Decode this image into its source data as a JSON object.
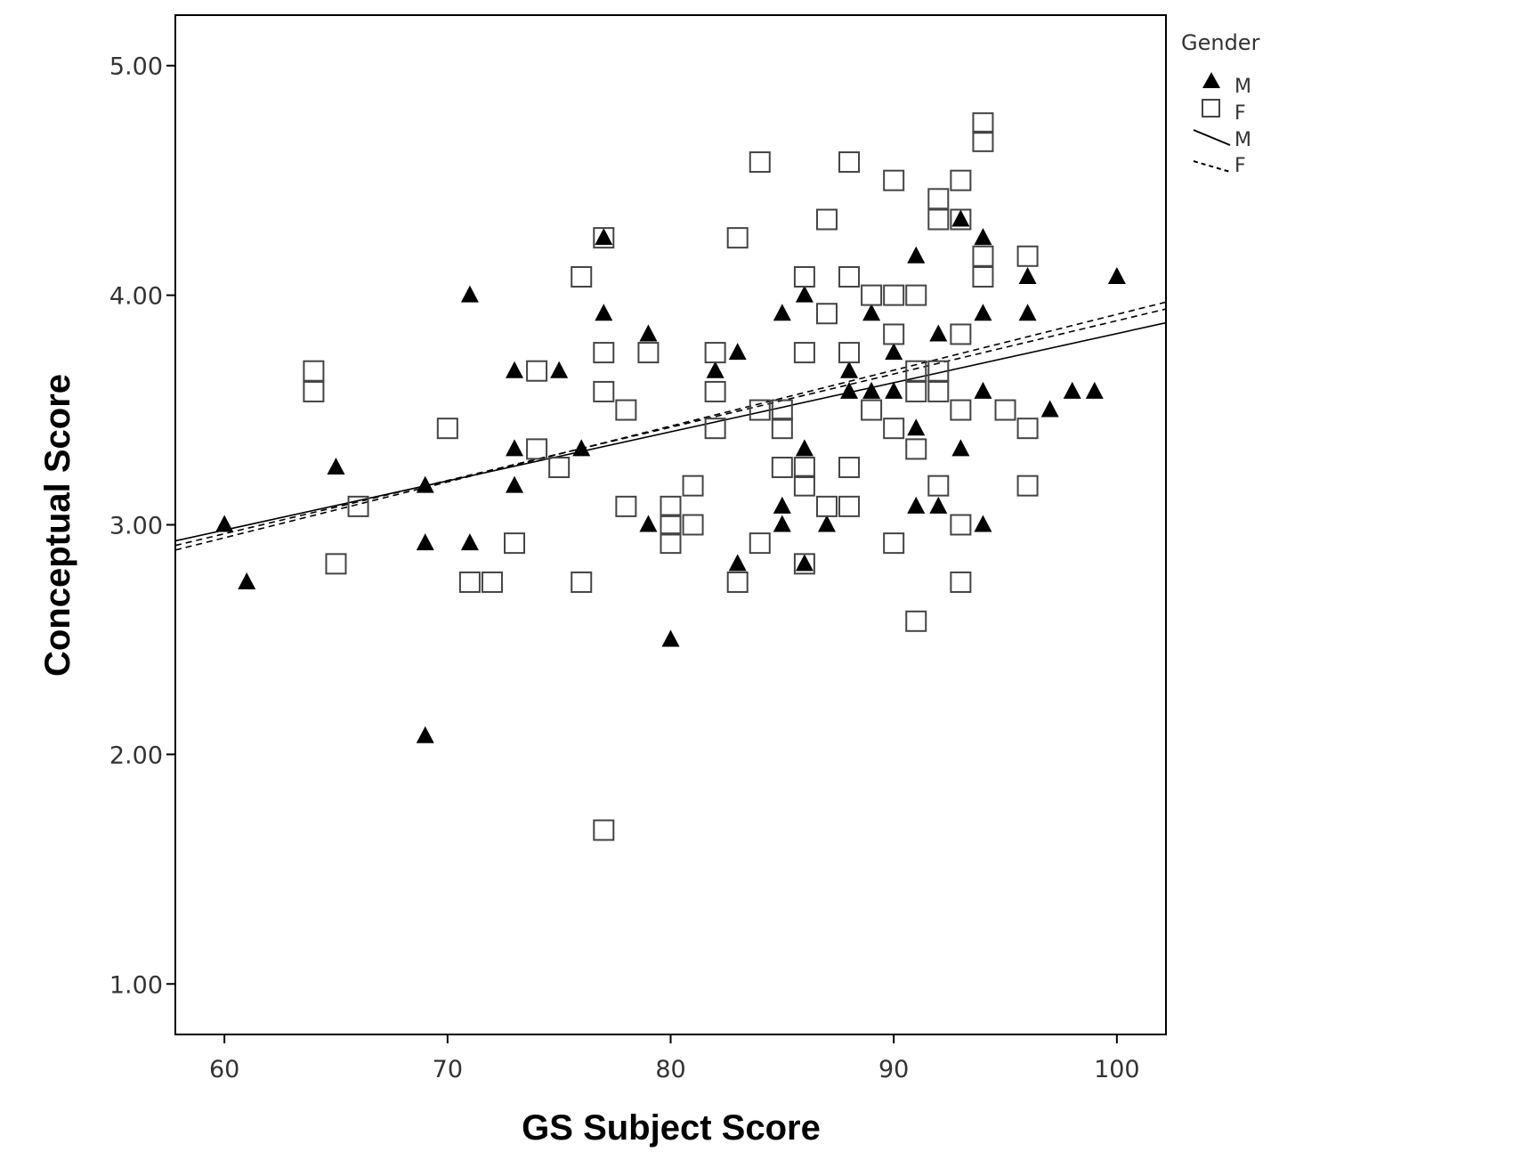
{
  "chart_data": {
    "type": "scatter",
    "title": "",
    "xlabel": "GS Subject Score",
    "ylabel": "Conceptual Score",
    "xlim": [
      57.8,
      102.2
    ],
    "ylim": [
      0.78,
      5.22
    ],
    "x_ticks": [
      60,
      70,
      80,
      90,
      100
    ],
    "x_tick_labels": [
      "60",
      "70",
      "80",
      "90",
      "100"
    ],
    "y_ticks": [
      1,
      2,
      3,
      4,
      5
    ],
    "y_tick_labels": [
      "1.00",
      "2.00",
      "3.00",
      "4.00",
      "5.00"
    ],
    "grid": false,
    "legend": {
      "title": "Gender",
      "position": "top-right, outside plot",
      "entries": [
        {
          "label": "M",
          "symbol": "filled-triangle"
        },
        {
          "label": "F",
          "symbol": "open-square"
        },
        {
          "label": "M",
          "symbol": "solid-line"
        },
        {
          "label": "F",
          "symbol": "dashed-line"
        }
      ]
    },
    "series": [
      {
        "name": "M",
        "marker": "filled-triangle",
        "color": "#000000",
        "points": [
          [
            60,
            3.0
          ],
          [
            61,
            2.75
          ],
          [
            65,
            3.25
          ],
          [
            69,
            3.17
          ],
          [
            69,
            2.92
          ],
          [
            69,
            2.08
          ],
          [
            71,
            4.0
          ],
          [
            71,
            2.92
          ],
          [
            73,
            3.67
          ],
          [
            73,
            3.33
          ],
          [
            73,
            3.17
          ],
          [
            75,
            3.67
          ],
          [
            76,
            3.33
          ],
          [
            77,
            4.25
          ],
          [
            77,
            3.92
          ],
          [
            79,
            3.83
          ],
          [
            79,
            3.0
          ],
          [
            80,
            2.5
          ],
          [
            82,
            3.67
          ],
          [
            83,
            3.75
          ],
          [
            83,
            2.83
          ],
          [
            85,
            3.92
          ],
          [
            85,
            3.08
          ],
          [
            85,
            3.0
          ],
          [
            86,
            4.0
          ],
          [
            86,
            3.33
          ],
          [
            86,
            2.83
          ],
          [
            87,
            3.0
          ],
          [
            88,
            3.67
          ],
          [
            88,
            3.58
          ],
          [
            89,
            3.92
          ],
          [
            89,
            3.58
          ],
          [
            90,
            3.75
          ],
          [
            90,
            3.58
          ],
          [
            91,
            4.17
          ],
          [
            91,
            3.42
          ],
          [
            91,
            3.08
          ],
          [
            92,
            3.83
          ],
          [
            92,
            3.08
          ],
          [
            93,
            4.33
          ],
          [
            93,
            3.33
          ],
          [
            94,
            4.25
          ],
          [
            94,
            3.92
          ],
          [
            94,
            3.58
          ],
          [
            94,
            3.0
          ],
          [
            96,
            4.08
          ],
          [
            96,
            3.92
          ],
          [
            97,
            3.5
          ],
          [
            98,
            3.58
          ],
          [
            99,
            3.58
          ],
          [
            100,
            4.08
          ]
        ]
      },
      {
        "name": "F",
        "marker": "open-square",
        "color": "#444444",
        "points": [
          [
            64,
            3.67
          ],
          [
            64,
            3.58
          ],
          [
            65,
            2.83
          ],
          [
            66,
            3.08
          ],
          [
            70,
            3.42
          ],
          [
            71,
            2.75
          ],
          [
            72,
            2.75
          ],
          [
            73,
            2.92
          ],
          [
            74,
            3.67
          ],
          [
            74,
            3.33
          ],
          [
            75,
            3.25
          ],
          [
            76,
            4.08
          ],
          [
            76,
            2.75
          ],
          [
            77,
            4.25
          ],
          [
            77,
            3.75
          ],
          [
            77,
            3.58
          ],
          [
            77,
            1.67
          ],
          [
            78,
            3.5
          ],
          [
            78,
            3.08
          ],
          [
            79,
            3.75
          ],
          [
            80,
            3.08
          ],
          [
            80,
            3.0
          ],
          [
            80,
            2.92
          ],
          [
            81,
            3.17
          ],
          [
            81,
            3.0
          ],
          [
            82,
            3.75
          ],
          [
            82,
            3.58
          ],
          [
            82,
            3.42
          ],
          [
            83,
            4.25
          ],
          [
            83,
            2.75
          ],
          [
            84,
            4.58
          ],
          [
            84,
            3.5
          ],
          [
            84,
            2.92
          ],
          [
            85,
            3.5
          ],
          [
            85,
            3.42
          ],
          [
            85,
            3.25
          ],
          [
            86,
            4.08
          ],
          [
            86,
            3.75
          ],
          [
            86,
            3.25
          ],
          [
            86,
            3.17
          ],
          [
            86,
            2.83
          ],
          [
            87,
            4.33
          ],
          [
            87,
            3.92
          ],
          [
            87,
            3.08
          ],
          [
            88,
            4.58
          ],
          [
            88,
            4.08
          ],
          [
            88,
            3.75
          ],
          [
            88,
            3.25
          ],
          [
            88,
            3.08
          ],
          [
            89,
            4.0
          ],
          [
            89,
            3.5
          ],
          [
            90,
            4.5
          ],
          [
            90,
            4.0
          ],
          [
            90,
            3.83
          ],
          [
            90,
            3.42
          ],
          [
            90,
            2.92
          ],
          [
            91,
            4.0
          ],
          [
            91,
            3.67
          ],
          [
            91,
            3.58
          ],
          [
            91,
            3.33
          ],
          [
            91,
            2.58
          ],
          [
            92,
            4.42
          ],
          [
            92,
            4.33
          ],
          [
            92,
            3.67
          ],
          [
            92,
            3.58
          ],
          [
            92,
            3.17
          ],
          [
            93,
            4.5
          ],
          [
            93,
            4.33
          ],
          [
            93,
            3.83
          ],
          [
            93,
            3.5
          ],
          [
            93,
            3.0
          ],
          [
            93,
            2.75
          ],
          [
            94,
            4.75
          ],
          [
            94,
            4.67
          ],
          [
            94,
            4.17
          ],
          [
            94,
            4.08
          ],
          [
            95,
            3.5
          ],
          [
            96,
            4.17
          ],
          [
            96,
            3.42
          ],
          [
            96,
            3.17
          ]
        ]
      }
    ],
    "fit_lines": [
      {
        "name": "M",
        "style": "solid",
        "color": "#000000",
        "points": [
          [
            57.8,
            2.93
          ],
          [
            102.2,
            3.88
          ]
        ]
      },
      {
        "name": "F",
        "style": "dashed",
        "color": "#000000",
        "points": [
          [
            57.8,
            2.89
          ],
          [
            102.2,
            3.97
          ]
        ]
      },
      {
        "name": "F",
        "style": "dashed",
        "color": "#000000",
        "points": [
          [
            57.8,
            2.91
          ],
          [
            102.2,
            3.94
          ]
        ]
      }
    ]
  }
}
